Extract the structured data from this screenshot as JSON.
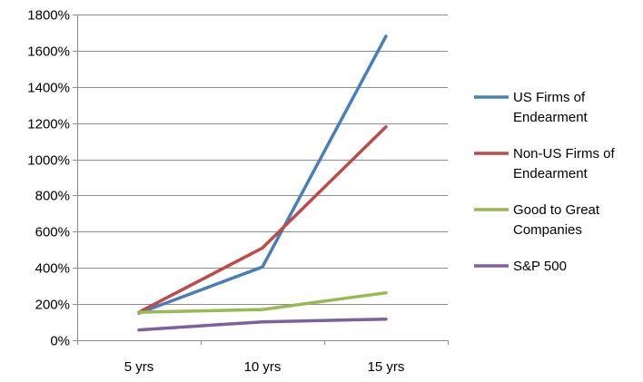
{
  "chart_data": {
    "type": "line",
    "title": "",
    "xlabel": "",
    "ylabel": "",
    "categories": [
      "5 yrs",
      "10 yrs",
      "15 yrs"
    ],
    "ylim": [
      0,
      1800
    ],
    "yticks": [
      0,
      200,
      400,
      600,
      800,
      1000,
      1200,
      1400,
      1600,
      1800
    ],
    "ytick_labels": [
      "0%",
      "200%",
      "400%",
      "600%",
      "800%",
      "1000%",
      "1200%",
      "1400%",
      "1600%",
      "1800%"
    ],
    "grid": true,
    "legend_position": "right",
    "series": [
      {
        "name": "US Firms of Endearment",
        "legend_lines": [
          "US Firms of",
          "Endearment"
        ],
        "color": "#4a7ebb",
        "values": [
          150,
          405,
          1680
        ]
      },
      {
        "name": "Non-US Firms of Endearment",
        "legend_lines": [
          "Non-US Firms of",
          "Endearment"
        ],
        "color": "#be4b48",
        "values": [
          155,
          510,
          1180
        ]
      },
      {
        "name": "Good to Great Companies",
        "legend_lines": [
          "Good to Great",
          "Companies"
        ],
        "color": "#98b954",
        "values": [
          155,
          170,
          262
        ]
      },
      {
        "name": "S&P 500",
        "legend_lines": [
          "S&P 500"
        ],
        "color": "#7d60a0",
        "values": [
          57,
          102,
          117
        ]
      }
    ]
  }
}
